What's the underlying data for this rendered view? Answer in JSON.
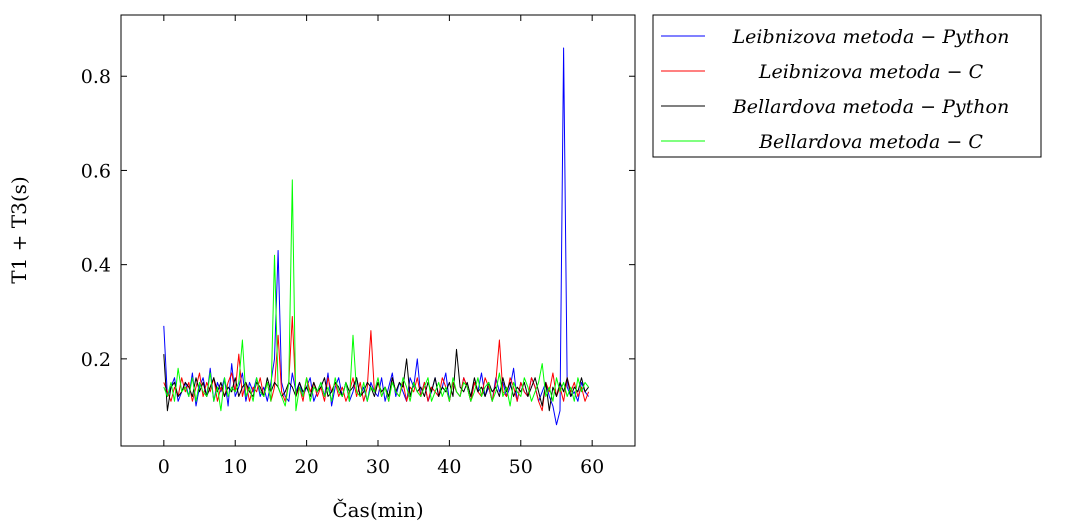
{
  "chart_data": {
    "type": "line",
    "xlabel": "Čas(min)",
    "ylabel": "T1 + T3(s)",
    "xlim": [
      -6,
      66
    ],
    "ylim": [
      0.015,
      0.93
    ],
    "xticks": [
      0,
      10,
      20,
      30,
      40,
      50,
      60
    ],
    "yticks": [
      0.2,
      0.4,
      0.6,
      0.8
    ],
    "xtick_labels": [
      "0",
      "10",
      "20",
      "30",
      "40",
      "50",
      "60"
    ],
    "ytick_labels": [
      "0.2",
      "0.4",
      "0.6",
      "0.8"
    ],
    "grid": false,
    "legend_position": "outside-top-right",
    "series": [
      {
        "name": "Leibnizova metoda − Python",
        "color": "#0000ff",
        "x": [
          0,
          0.5,
          1,
          1.5,
          2,
          2.5,
          3,
          3.5,
          4,
          4.5,
          5,
          5.5,
          6,
          6.5,
          7,
          7.5,
          8,
          8.5,
          9,
          9.5,
          10,
          10.5,
          11,
          11.5,
          12,
          12.5,
          13,
          13.5,
          14,
          14.5,
          15,
          15.5,
          16,
          16.5,
          17,
          17.5,
          18,
          18.5,
          19,
          19.5,
          20,
          20.5,
          21,
          21.5,
          22,
          22.5,
          23,
          23.5,
          24,
          24.5,
          25,
          25.5,
          26,
          26.5,
          27,
          27.5,
          28,
          28.5,
          29,
          29.5,
          30,
          30.5,
          31,
          31.5,
          32,
          32.5,
          33,
          33.5,
          34,
          34.5,
          35,
          35.5,
          36,
          36.5,
          37,
          37.5,
          38,
          38.5,
          39,
          39.5,
          40,
          40.5,
          41,
          41.5,
          42,
          42.5,
          43,
          43.5,
          44,
          44.5,
          45,
          45.5,
          46,
          46.5,
          47,
          47.5,
          48,
          48.5,
          49,
          49.5,
          50,
          50.5,
          51,
          51.5,
          52,
          52.5,
          53,
          53.5,
          54,
          54.5,
          55,
          55.5,
          56,
          56.5,
          57,
          57.5,
          58,
          58.5,
          59,
          59.5
        ],
        "values": [
          0.27,
          0.12,
          0.14,
          0.16,
          0.11,
          0.13,
          0.15,
          0.12,
          0.17,
          0.1,
          0.14,
          0.16,
          0.12,
          0.18,
          0.11,
          0.15,
          0.13,
          0.16,
          0.1,
          0.19,
          0.12,
          0.14,
          0.17,
          0.11,
          0.15,
          0.13,
          0.16,
          0.12,
          0.14,
          0.11,
          0.15,
          0.2,
          0.43,
          0.15,
          0.12,
          0.11,
          0.17,
          0.13,
          0.15,
          0.12,
          0.14,
          0.16,
          0.11,
          0.13,
          0.15,
          0.12,
          0.17,
          0.1,
          0.14,
          0.16,
          0.12,
          0.15,
          0.11,
          0.13,
          0.16,
          0.12,
          0.14,
          0.11,
          0.15,
          0.13,
          0.12,
          0.16,
          0.11,
          0.14,
          0.17,
          0.12,
          0.15,
          0.13,
          0.11,
          0.16,
          0.14,
          0.2,
          0.12,
          0.15,
          0.11,
          0.13,
          0.16,
          0.12,
          0.14,
          0.17,
          0.11,
          0.15,
          0.13,
          0.12,
          0.16,
          0.14,
          0.11,
          0.15,
          0.13,
          0.17,
          0.12,
          0.14,
          0.11,
          0.16,
          0.13,
          0.15,
          0.12,
          0.14,
          0.18,
          0.11,
          0.15,
          0.13,
          0.12,
          0.16,
          0.14,
          0.11,
          0.13,
          0.15,
          0.12,
          0.1,
          0.06,
          0.09,
          0.86,
          0.14,
          0.12,
          0.13,
          0.11,
          0.15,
          0.13,
          0.12
        ]
      },
      {
        "name": "Leibnizova metoda − C",
        "color": "#ff0000",
        "x": [
          0,
          0.5,
          1,
          1.5,
          2,
          2.5,
          3,
          3.5,
          4,
          4.5,
          5,
          5.5,
          6,
          6.5,
          7,
          7.5,
          8,
          8.5,
          9,
          9.5,
          10,
          10.5,
          11,
          11.5,
          12,
          12.5,
          13,
          13.5,
          14,
          14.5,
          15,
          15.5,
          16,
          16.5,
          17,
          17.5,
          18,
          18.5,
          19,
          19.5,
          20,
          20.5,
          21,
          21.5,
          22,
          22.5,
          23,
          23.5,
          24,
          24.5,
          25,
          25.5,
          26,
          26.5,
          27,
          27.5,
          28,
          28.5,
          29,
          29.5,
          30,
          30.5,
          31,
          31.5,
          32,
          32.5,
          33,
          33.5,
          34,
          34.5,
          35,
          35.5,
          36,
          36.5,
          37,
          37.5,
          38,
          38.5,
          39,
          39.5,
          40,
          40.5,
          41,
          41.5,
          42,
          42.5,
          43,
          43.5,
          44,
          44.5,
          45,
          45.5,
          46,
          46.5,
          47,
          47.5,
          48,
          48.5,
          49,
          49.5,
          50,
          50.5,
          51,
          51.5,
          52,
          52.5,
          53,
          53.5,
          54,
          54.5,
          55,
          55.5,
          56,
          56.5,
          57,
          57.5,
          58,
          58.5,
          59,
          59.5
        ],
        "values": [
          0.15,
          0.13,
          0.11,
          0.14,
          0.12,
          0.16,
          0.13,
          0.15,
          0.11,
          0.14,
          0.17,
          0.12,
          0.15,
          0.13,
          0.16,
          0.11,
          0.14,
          0.12,
          0.15,
          0.17,
          0.13,
          0.21,
          0.12,
          0.15,
          0.11,
          0.14,
          0.13,
          0.16,
          0.12,
          0.15,
          0.11,
          0.14,
          0.25,
          0.13,
          0.11,
          0.15,
          0.29,
          0.12,
          0.14,
          0.11,
          0.16,
          0.13,
          0.15,
          0.12,
          0.14,
          0.11,
          0.16,
          0.13,
          0.15,
          0.12,
          0.14,
          0.11,
          0.13,
          0.16,
          0.12,
          0.15,
          0.11,
          0.14,
          0.26,
          0.13,
          0.15,
          0.12,
          0.14,
          0.11,
          0.16,
          0.13,
          0.12,
          0.15,
          0.11,
          0.14,
          0.13,
          0.16,
          0.12,
          0.15,
          0.11,
          0.14,
          0.13,
          0.12,
          0.16,
          0.14,
          0.11,
          0.15,
          0.13,
          0.12,
          0.16,
          0.14,
          0.11,
          0.15,
          0.13,
          0.12,
          0.16,
          0.14,
          0.11,
          0.15,
          0.24,
          0.13,
          0.12,
          0.16,
          0.14,
          0.11,
          0.15,
          0.13,
          0.12,
          0.16,
          0.14,
          0.11,
          0.09,
          0.15,
          0.13,
          0.17,
          0.12,
          0.14,
          0.11,
          0.16,
          0.13,
          0.15,
          0.12,
          0.14,
          0.11,
          0.13
        ]
      },
      {
        "name": "Bellardova metoda − Python",
        "color": "#000000",
        "x": [
          0,
          0.5,
          1,
          1.5,
          2,
          2.5,
          3,
          3.5,
          4,
          4.5,
          5,
          5.5,
          6,
          6.5,
          7,
          7.5,
          8,
          8.5,
          9,
          9.5,
          10,
          10.5,
          11,
          11.5,
          12,
          12.5,
          13,
          13.5,
          14,
          14.5,
          15,
          15.5,
          16,
          16.5,
          17,
          17.5,
          18,
          18.5,
          19,
          19.5,
          20,
          20.5,
          21,
          21.5,
          22,
          22.5,
          23,
          23.5,
          24,
          24.5,
          25,
          25.5,
          26,
          26.5,
          27,
          27.5,
          28,
          28.5,
          29,
          29.5,
          30,
          30.5,
          31,
          31.5,
          32,
          32.5,
          33,
          33.5,
          34,
          34.5,
          35,
          35.5,
          36,
          36.5,
          37,
          37.5,
          38,
          38.5,
          39,
          39.5,
          40,
          40.5,
          41,
          41.5,
          42,
          42.5,
          43,
          43.5,
          44,
          44.5,
          45,
          45.5,
          46,
          46.5,
          47,
          47.5,
          48,
          48.5,
          49,
          49.5,
          50,
          50.5,
          51,
          51.5,
          52,
          52.5,
          53,
          53.5,
          54,
          54.5,
          55,
          55.5,
          56,
          56.5,
          57,
          57.5,
          58,
          58.5,
          59,
          59.5
        ],
        "values": [
          0.21,
          0.09,
          0.14,
          0.15,
          0.12,
          0.13,
          0.15,
          0.14,
          0.12,
          0.16,
          0.13,
          0.15,
          0.12,
          0.14,
          0.16,
          0.13,
          0.15,
          0.12,
          0.14,
          0.13,
          0.16,
          0.12,
          0.14,
          0.15,
          0.13,
          0.12,
          0.15,
          0.14,
          0.12,
          0.16,
          0.13,
          0.15,
          0.14,
          0.12,
          0.13,
          0.15,
          0.14,
          0.12,
          0.15,
          0.13,
          0.14,
          0.12,
          0.15,
          0.13,
          0.14,
          0.16,
          0.12,
          0.13,
          0.15,
          0.14,
          0.12,
          0.15,
          0.13,
          0.14,
          0.16,
          0.12,
          0.13,
          0.15,
          0.14,
          0.12,
          0.15,
          0.13,
          0.14,
          0.12,
          0.16,
          0.13,
          0.15,
          0.14,
          0.2,
          0.12,
          0.15,
          0.13,
          0.14,
          0.12,
          0.15,
          0.13,
          0.16,
          0.12,
          0.14,
          0.13,
          0.15,
          0.12,
          0.22,
          0.14,
          0.13,
          0.15,
          0.12,
          0.16,
          0.13,
          0.14,
          0.12,
          0.15,
          0.13,
          0.14,
          0.12,
          0.16,
          0.13,
          0.15,
          0.12,
          0.14,
          0.13,
          0.15,
          0.12,
          0.14,
          0.16,
          0.13,
          0.1,
          0.15,
          0.09,
          0.14,
          0.12,
          0.15,
          0.13,
          0.16,
          0.12,
          0.14,
          0.13,
          0.16,
          0.13,
          0.14
        ]
      },
      {
        "name": "Bellardova metoda − C",
        "color": "#00ff00",
        "x": [
          0,
          0.5,
          1,
          1.5,
          2,
          2.5,
          3,
          3.5,
          4,
          4.5,
          5,
          5.5,
          6,
          6.5,
          7,
          7.5,
          8,
          8.5,
          9,
          9.5,
          10,
          10.5,
          11,
          11.5,
          12,
          12.5,
          13,
          13.5,
          14,
          14.5,
          15,
          15.5,
          16,
          16.5,
          17,
          17.5,
          18,
          18.5,
          19,
          19.5,
          20,
          20.5,
          21,
          21.5,
          22,
          22.5,
          23,
          23.5,
          24,
          24.5,
          25,
          25.5,
          26,
          26.5,
          27,
          27.5,
          28,
          28.5,
          29,
          29.5,
          30,
          30.5,
          31,
          31.5,
          32,
          32.5,
          33,
          33.5,
          34,
          34.5,
          35,
          35.5,
          36,
          36.5,
          37,
          37.5,
          38,
          38.5,
          39,
          39.5,
          40,
          40.5,
          41,
          41.5,
          42,
          42.5,
          43,
          43.5,
          44,
          44.5,
          45,
          45.5,
          46,
          46.5,
          47,
          47.5,
          48,
          48.5,
          49,
          49.5,
          50,
          50.5,
          51,
          51.5,
          52,
          52.5,
          53,
          53.5,
          54,
          54.5,
          55,
          55.5,
          56,
          56.5,
          57,
          57.5,
          58,
          58.5,
          59,
          59.5
        ],
        "values": [
          0.14,
          0.12,
          0.15,
          0.11,
          0.18,
          0.13,
          0.14,
          0.12,
          0.16,
          0.11,
          0.15,
          0.13,
          0.12,
          0.17,
          0.11,
          0.14,
          0.09,
          0.16,
          0.12,
          0.14,
          0.13,
          0.15,
          0.24,
          0.12,
          0.14,
          0.11,
          0.16,
          0.13,
          0.12,
          0.15,
          0.11,
          0.42,
          0.14,
          0.12,
          0.1,
          0.15,
          0.58,
          0.09,
          0.14,
          0.12,
          0.16,
          0.11,
          0.14,
          0.13,
          0.15,
          0.12,
          0.14,
          0.11,
          0.16,
          0.13,
          0.12,
          0.15,
          0.11,
          0.25,
          0.13,
          0.12,
          0.15,
          0.11,
          0.14,
          0.13,
          0.16,
          0.12,
          0.14,
          0.11,
          0.15,
          0.13,
          0.12,
          0.16,
          0.14,
          0.11,
          0.15,
          0.13,
          0.12,
          0.14,
          0.16,
          0.11,
          0.13,
          0.15,
          0.12,
          0.14,
          0.11,
          0.16,
          0.13,
          0.12,
          0.15,
          0.14,
          0.11,
          0.13,
          0.16,
          0.12,
          0.14,
          0.15,
          0.11,
          0.13,
          0.17,
          0.12,
          0.14,
          0.1,
          0.15,
          0.13,
          0.12,
          0.16,
          0.14,
          0.11,
          0.13,
          0.15,
          0.19,
          0.12,
          0.14,
          0.11,
          0.16,
          0.13,
          0.15,
          0.12,
          0.14,
          0.11,
          0.16,
          0.13,
          0.15,
          0.14
        ]
      }
    ]
  }
}
